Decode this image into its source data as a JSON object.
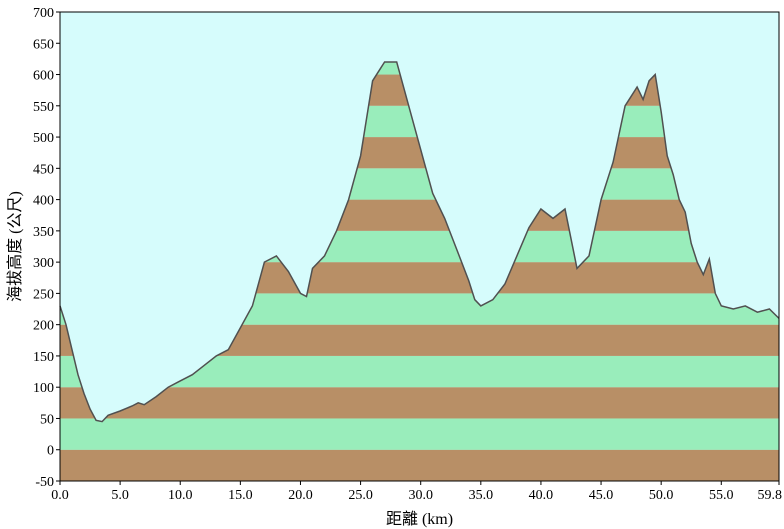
{
  "chart_data": {
    "type": "area",
    "title": "",
    "xlabel": "距離 (km)",
    "ylabel": "海拔高度 (公尺)",
    "xlim": [
      0,
      59.8
    ],
    "ylim": [
      -50,
      700
    ],
    "x_ticks": [
      "0.0",
      "5.0",
      "10.0",
      "15.0",
      "20.0",
      "25.0",
      "30.0",
      "35.0",
      "40.0",
      "45.0",
      "50.0",
      "55.0",
      "59.8"
    ],
    "y_ticks": [
      "-50",
      "0",
      "50",
      "100",
      "150",
      "200",
      "250",
      "300",
      "350",
      "400",
      "450",
      "500",
      "550",
      "600",
      "650",
      "700"
    ],
    "band_colors": [
      "#b88f66",
      "#99edbb"
    ],
    "band_size": 50,
    "background_color": "#d6fcfc",
    "line_color": "#505050",
    "series": [
      {
        "x": [
          0,
          0.5,
          1,
          1.5,
          2,
          2.5,
          3,
          3.5,
          4,
          5,
          6,
          6.5,
          7,
          8,
          9,
          10,
          11,
          12,
          13,
          14,
          15,
          16,
          17,
          18,
          19,
          20,
          20.5,
          21,
          22,
          23,
          24,
          25,
          26,
          27,
          28,
          29,
          30,
          31,
          32,
          33,
          34,
          34.5,
          35,
          36,
          37,
          38,
          39,
          40,
          41,
          42,
          43,
          44,
          45,
          46,
          47,
          48,
          48.5,
          49,
          49.5,
          50,
          50.5,
          51,
          51.5,
          52,
          52.5,
          53,
          53.5,
          54,
          54.5,
          55,
          56,
          57,
          58,
          59,
          59.8
        ],
        "y": [
          230,
          200,
          160,
          120,
          90,
          65,
          47,
          45,
          55,
          62,
          70,
          75,
          72,
          85,
          100,
          110,
          120,
          135,
          150,
          160,
          195,
          230,
          300,
          310,
          285,
          250,
          245,
          290,
          310,
          350,
          400,
          470,
          590,
          620,
          620,
          550,
          480,
          410,
          370,
          320,
          270,
          240,
          230,
          240,
          265,
          310,
          355,
          385,
          370,
          385,
          290,
          310,
          400,
          460,
          550,
          580,
          560,
          590,
          600,
          540,
          470,
          440,
          400,
          380,
          330,
          300,
          280,
          305,
          250,
          230,
          225,
          230,
          220,
          225,
          210
        ]
      }
    ]
  }
}
